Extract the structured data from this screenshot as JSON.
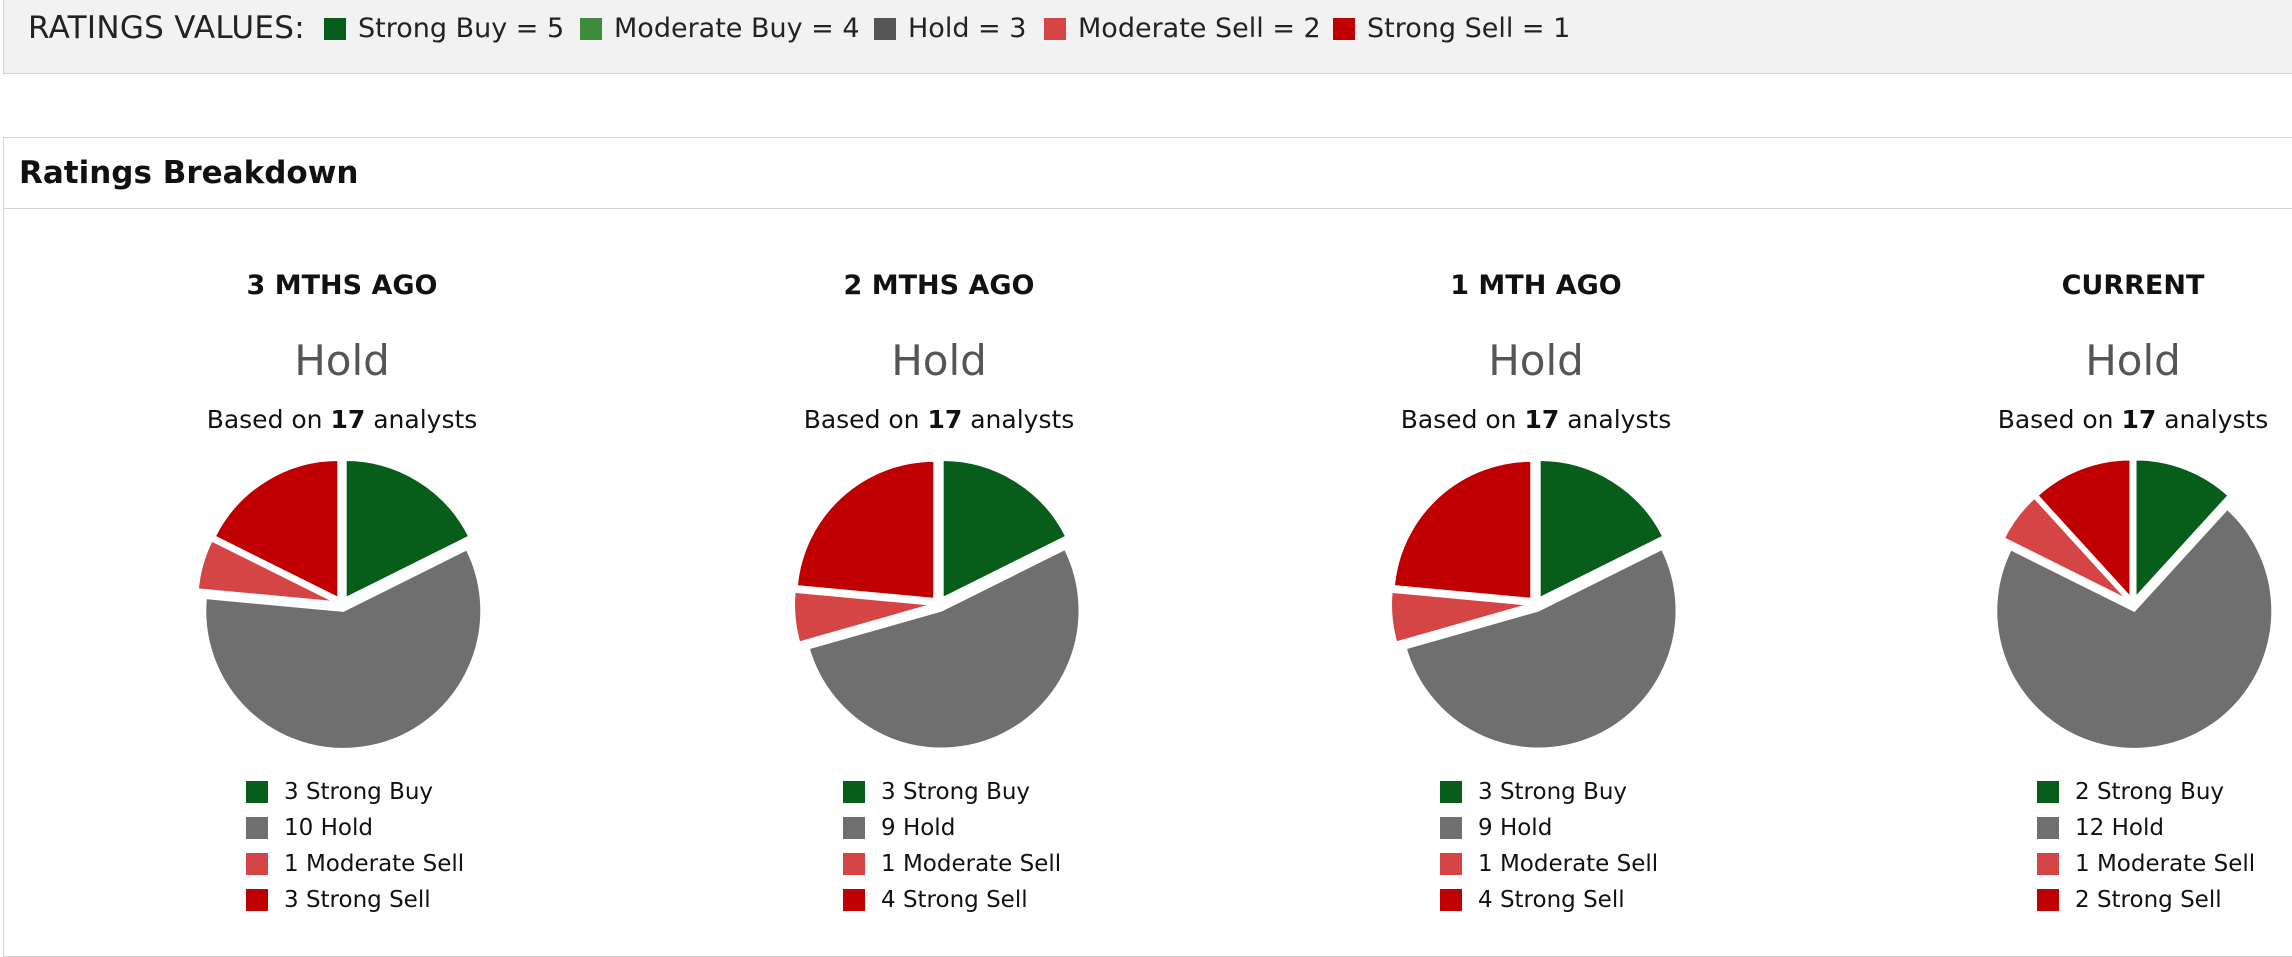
{
  "ratings_values": {
    "title": "RATINGS VALUES:",
    "items": [
      {
        "label": "Strong Buy = 5",
        "color": "#075e1a"
      },
      {
        "label": "Moderate Buy = 4",
        "color": "#3d8c3d"
      },
      {
        "label": "Hold = 3",
        "color": "#555555"
      },
      {
        "label": "Moderate Sell = 2",
        "color": "#d64545"
      },
      {
        "label": "Strong Sell = 1",
        "color": "#c00000"
      }
    ]
  },
  "breakdown": {
    "title": "Ratings Breakdown",
    "based_on_prefix": "Based on",
    "based_on_suffix": "analysts"
  },
  "colors": {
    "Strong Buy": "#075e1a",
    "Hold": "#6f6f6f",
    "Moderate Sell": "#d64545",
    "Strong Sell": "#c00000"
  },
  "chart_data": [
    {
      "type": "pie",
      "period": "3 MTHS AGO",
      "consensus": "Hold",
      "analysts": "17",
      "slices": [
        {
          "label": "Strong Buy",
          "value": 3,
          "legend": "3 Strong Buy"
        },
        {
          "label": "Hold",
          "value": 10,
          "legend": "10 Hold"
        },
        {
          "label": "Moderate Sell",
          "value": 1,
          "legend": "1 Moderate Sell"
        },
        {
          "label": "Strong Sell",
          "value": 3,
          "legend": "3 Strong Sell"
        }
      ]
    },
    {
      "type": "pie",
      "period": "2 MTHS AGO",
      "consensus": "Hold",
      "analysts": "17",
      "slices": [
        {
          "label": "Strong Buy",
          "value": 3,
          "legend": "3 Strong Buy"
        },
        {
          "label": "Hold",
          "value": 9,
          "legend": "9 Hold"
        },
        {
          "label": "Moderate Sell",
          "value": 1,
          "legend": "1 Moderate Sell"
        },
        {
          "label": "Strong Sell",
          "value": 4,
          "legend": "4 Strong Sell"
        }
      ]
    },
    {
      "type": "pie",
      "period": "1 MTH AGO",
      "consensus": "Hold",
      "analysts": "17",
      "slices": [
        {
          "label": "Strong Buy",
          "value": 3,
          "legend": "3 Strong Buy"
        },
        {
          "label": "Hold",
          "value": 9,
          "legend": "9 Hold"
        },
        {
          "label": "Moderate Sell",
          "value": 1,
          "legend": "1 Moderate Sell"
        },
        {
          "label": "Strong Sell",
          "value": 4,
          "legend": "4 Strong Sell"
        }
      ]
    },
    {
      "type": "pie",
      "period": "CURRENT",
      "consensus": "Hold",
      "analysts": "17",
      "slices": [
        {
          "label": "Strong Buy",
          "value": 2,
          "legend": "2 Strong Buy"
        },
        {
          "label": "Hold",
          "value": 12,
          "legend": "12 Hold"
        },
        {
          "label": "Moderate Sell",
          "value": 1,
          "legend": "1 Moderate Sell"
        },
        {
          "label": "Strong Sell",
          "value": 2,
          "legend": "2 Strong Sell"
        }
      ]
    }
  ]
}
